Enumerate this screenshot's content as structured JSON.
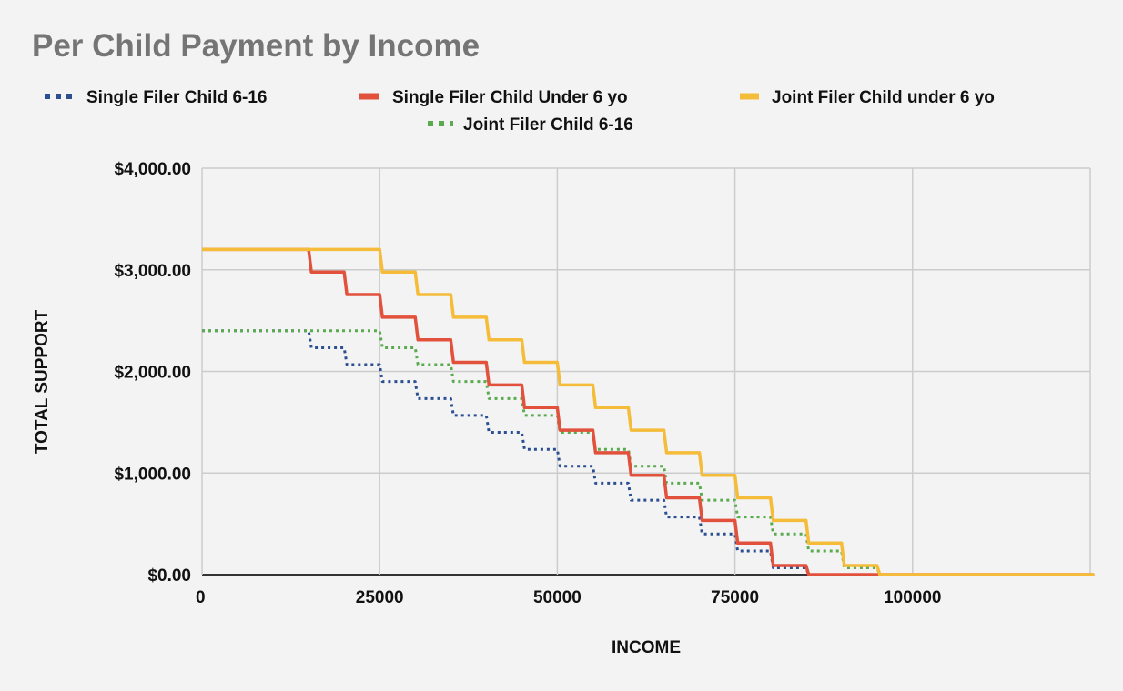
{
  "chart_data": {
    "type": "line",
    "title": "Per Child Payment by Income",
    "xlabel": "INCOME",
    "ylabel": "TOTAL SUPPORT",
    "xlim": [
      0,
      125000
    ],
    "ylim": [
      0,
      4000
    ],
    "x_ticks": [
      0,
      25000,
      50000,
      75000,
      100000
    ],
    "x_tick_labels": [
      "0",
      "25000",
      "50000",
      "75000",
      "100000"
    ],
    "y_ticks": [
      0,
      1000,
      2000,
      3000,
      4000
    ],
    "y_tick_labels": [
      "$0.00",
      "$1,000.00",
      "$2,000.00",
      "$3,000.00",
      "$4,000.00"
    ],
    "grid": true,
    "legend_position": "top",
    "step": "post",
    "x": [
      0,
      5000,
      10000,
      15000,
      20000,
      25000,
      30000,
      35000,
      40000,
      45000,
      50000,
      55000,
      60000,
      65000,
      70000,
      75000,
      80000,
      85000,
      90000,
      95000,
      100000,
      105000,
      110000,
      115000,
      120000,
      125000
    ],
    "series": [
      {
        "name": "Single Filer Child 6-16",
        "color": "#2b4f91",
        "dash": true,
        "values": [
          2400,
          2400,
          2400,
          2233,
          2067,
          1900,
          1733,
          1567,
          1400,
          1233,
          1067,
          900,
          733,
          567,
          400,
          233,
          67,
          0,
          0,
          0,
          0,
          0,
          0,
          0,
          0,
          0
        ]
      },
      {
        "name": "Single Filer Child Under 6 yo",
        "color": "#e1513c",
        "dash": false,
        "values": [
          3200,
          3200,
          3200,
          2978,
          2756,
          2533,
          2311,
          2089,
          1867,
          1644,
          1422,
          1200,
          978,
          756,
          533,
          311,
          89,
          0,
          0,
          0,
          0,
          0,
          0,
          0,
          0,
          0
        ]
      },
      {
        "name": "Joint Filer Child under 6 yo",
        "color": "#f5bc3a",
        "dash": false,
        "values": [
          3200,
          3200,
          3200,
          3200,
          3200,
          2978,
          2756,
          2533,
          2311,
          2089,
          1867,
          1644,
          1422,
          1200,
          978,
          756,
          533,
          311,
          89,
          0,
          0,
          0,
          0,
          0,
          0,
          0
        ]
      },
      {
        "name": "Joint Filer Child 6-16",
        "color": "#5aab50",
        "dash": true,
        "values": [
          2400,
          2400,
          2400,
          2400,
          2400,
          2233,
          2067,
          1900,
          1733,
          1567,
          1400,
          1233,
          1067,
          900,
          733,
          567,
          400,
          233,
          67,
          0,
          0,
          0,
          0,
          0,
          0,
          0
        ]
      }
    ]
  }
}
